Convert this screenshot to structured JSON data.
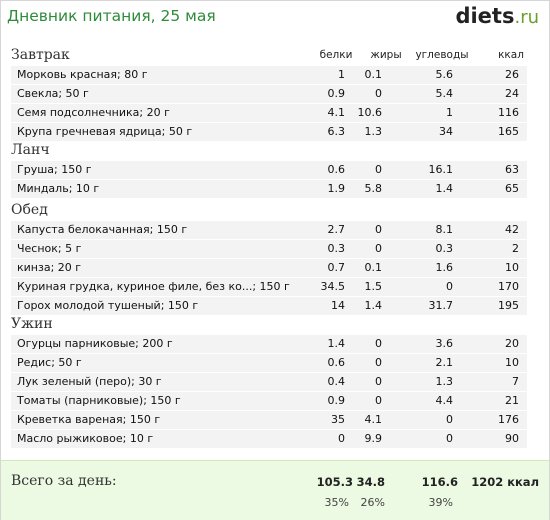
{
  "header": {
    "title": "Дневник питания, 25 мая",
    "logo_main": "diets",
    "logo_tld": ".ru"
  },
  "columns": {
    "protein": "белки",
    "fat": "жиры",
    "carbs": "углеводы",
    "kcal": "ккал"
  },
  "meals": [
    {
      "title": "Завтрак",
      "items": [
        {
          "name": "Морковь красная; 80 г",
          "protein": "1",
          "fat": "0.1",
          "carbs": "5.6",
          "kcal": "26"
        },
        {
          "name": "Свекла; 50 г",
          "protein": "0.9",
          "fat": "0",
          "carbs": "5.4",
          "kcal": "24"
        },
        {
          "name": "Семя подсолнечника; 20 г",
          "protein": "4.1",
          "fat": "10.6",
          "carbs": "1",
          "kcal": "116"
        },
        {
          "name": "Крупа гречневая ядрица; 50 г",
          "protein": "6.3",
          "fat": "1.3",
          "carbs": "34",
          "kcal": "165"
        }
      ]
    },
    {
      "title": "Ланч",
      "items": [
        {
          "name": "Груша; 150 г",
          "protein": "0.6",
          "fat": "0",
          "carbs": "16.1",
          "kcal": "63"
        },
        {
          "name": "Миндаль; 10 г",
          "protein": "1.9",
          "fat": "5.8",
          "carbs": "1.4",
          "kcal": "65"
        }
      ]
    },
    {
      "title": "Обед",
      "items": [
        {
          "name": "Капуста белокачанная; 150 г",
          "protein": "2.7",
          "fat": "0",
          "carbs": "8.1",
          "kcal": "42"
        },
        {
          "name": "Чеснок; 5 г",
          "protein": "0.3",
          "fat": "0",
          "carbs": "0.3",
          "kcal": "2"
        },
        {
          "name": "кинза; 20 г",
          "protein": "0.7",
          "fat": "0.1",
          "carbs": "1.6",
          "kcal": "10"
        },
        {
          "name": "Куриная грудка, куриное филе, без ко...; 150 г",
          "protein": "34.5",
          "fat": "1.5",
          "carbs": "0",
          "kcal": "170"
        },
        {
          "name": "Горох молодой тушеный; 150 г",
          "protein": "14",
          "fat": "1.4",
          "carbs": "31.7",
          "kcal": "195"
        }
      ]
    },
    {
      "title": "Ужин",
      "items": [
        {
          "name": "Огурцы парниковые; 200 г",
          "protein": "1.4",
          "fat": "0",
          "carbs": "3.6",
          "kcal": "20"
        },
        {
          "name": "Редис; 50 г",
          "protein": "0.6",
          "fat": "0",
          "carbs": "2.1",
          "kcal": "10"
        },
        {
          "name": "Лук зеленый (перо); 30 г",
          "protein": "0.4",
          "fat": "0",
          "carbs": "1.3",
          "kcal": "7"
        },
        {
          "name": "Томаты (парниковые); 150 г",
          "protein": "0.9",
          "fat": "0",
          "carbs": "4.4",
          "kcal": "21"
        },
        {
          "name": "Креветка вареная; 150 г",
          "protein": "35",
          "fat": "4.1",
          "carbs": "0",
          "kcal": "176"
        },
        {
          "name": "Масло рыжиковое; 10 г",
          "protein": "0",
          "fat": "9.9",
          "carbs": "0",
          "kcal": "90"
        }
      ]
    }
  ],
  "totals": {
    "label": "Всего за день:",
    "protein": "105.3",
    "fat": "34.8",
    "carbs": "116.6",
    "kcal": "1202 ккал",
    "protein_pct": "35%",
    "fat_pct": "26%",
    "carbs_pct": "39%"
  },
  "colors": {
    "title_green": "#2e8b3a",
    "row_bg": "#f3f3f3",
    "totals_bg": "#ecf9e3"
  }
}
